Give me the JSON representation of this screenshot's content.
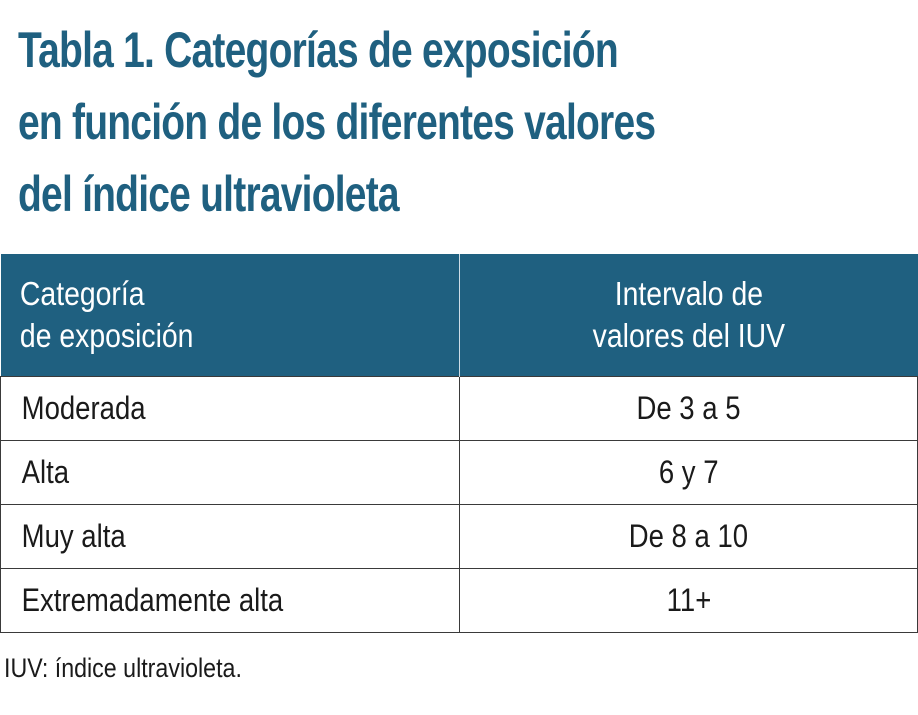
{
  "title": {
    "line1": "Tabla 1. Categorías de exposición",
    "line2": "en función de los diferentes valores",
    "line3": "del índice ultravioleta"
  },
  "table": {
    "headers": [
      {
        "line1": "Categoría",
        "line2": "de exposición"
      },
      {
        "line1": "Intervalo de",
        "line2": "valores del IUV"
      }
    ],
    "rows": [
      {
        "categoria": "Moderada",
        "intervalo": "De 3 a 5"
      },
      {
        "categoria": "Alta",
        "intervalo": "6 y 7"
      },
      {
        "categoria": "Muy alta",
        "intervalo": "De 8 a 10"
      },
      {
        "categoria": "Extremadamente alta",
        "intervalo": "11+"
      }
    ]
  },
  "footnote": "IUV: índice ultravioleta.",
  "colors": {
    "accent": "#1f6080",
    "header_text": "#ffffff",
    "body_text": "#1a1a1a",
    "border": "#3a3a3a"
  }
}
